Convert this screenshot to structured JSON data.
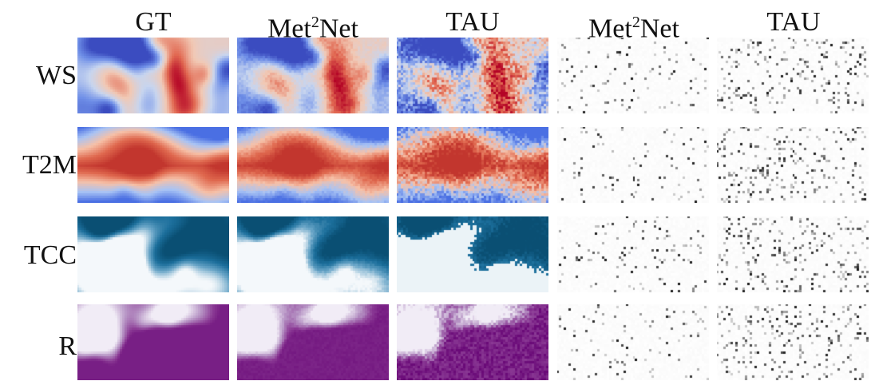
{
  "columns": [
    {
      "text": "GT"
    },
    {
      "base": "Met",
      "sup": "2",
      "rest": "Net"
    },
    {
      "text": "TAU"
    },
    {
      "base": "Met",
      "sup": "2",
      "rest": "Net"
    },
    {
      "text": "TAU"
    }
  ],
  "rows": [
    "WS",
    "T2M",
    "TCC",
    "R"
  ],
  "colormaps": {
    "WS": [
      "#3b4cc0",
      "#6f8fe8",
      "#c8d6f0",
      "#f2c9b5",
      "#e26952",
      "#b40426"
    ],
    "T2M": [
      "#4a6fe3",
      "#a9c4f5",
      "#f7c1a8",
      "#e0694f",
      "#c2362e"
    ],
    "TCC": [
      "#0a4f73",
      "#1c6f9c",
      "#6aa6c8",
      "#f4f8fb"
    ],
    "R": [
      "#6a0a78",
      "#8b3a95",
      "#b896c6",
      "#f1ecf6"
    ],
    "error": [
      "#ffffff",
      "#f2f2f2",
      "#bfbfbf",
      "#1a1a1a"
    ]
  }
}
